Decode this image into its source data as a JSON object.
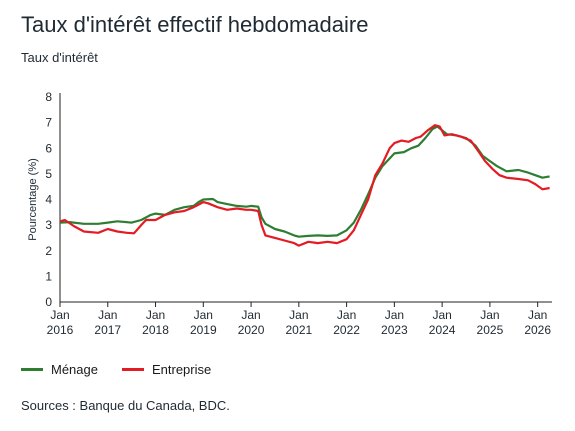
{
  "chart_data": {
    "type": "line",
    "title": "Taux d'intérêt effectif hebdomadaire",
    "subtitle": "Taux d'intérêt",
    "ylabel": "Pourcentage (%)",
    "xlabel": "",
    "ylim": [
      0,
      8
    ],
    "yticks": [
      "0",
      "1",
      "2",
      "3",
      "4",
      "5",
      "6",
      "7",
      "8"
    ],
    "xlim": [
      2016.0,
      2026.3
    ],
    "xticks": [
      {
        "x": 2016,
        "l1": "Jan",
        "l2": "2016"
      },
      {
        "x": 2017,
        "l1": "Jan",
        "l2": "2017"
      },
      {
        "x": 2018,
        "l1": "Jan",
        "l2": "2018"
      },
      {
        "x": 2019,
        "l1": "Jan",
        "l2": "2019"
      },
      {
        "x": 2020,
        "l1": "Jan",
        "l2": "2020"
      },
      {
        "x": 2021,
        "l1": "Jan",
        "l2": "2021"
      },
      {
        "x": 2022,
        "l1": "Jan",
        "l2": "2022"
      },
      {
        "x": 2023,
        "l1": "Jan",
        "l2": "2023"
      },
      {
        "x": 2024,
        "l1": "Jan",
        "l2": "2024"
      },
      {
        "x": 2025,
        "l1": "Jan",
        "l2": "2025"
      },
      {
        "x": 2026,
        "l1": "Jan",
        "l2": "2026"
      }
    ],
    "grid": false,
    "legend_position": "bottom-left",
    "series": [
      {
        "name": "Ménage",
        "color": "#2e7d32",
        "points": [
          [
            2016.0,
            3.1
          ],
          [
            2016.2,
            3.12
          ],
          [
            2016.5,
            3.05
          ],
          [
            2016.8,
            3.05
          ],
          [
            2017.0,
            3.1
          ],
          [
            2017.2,
            3.15
          ],
          [
            2017.5,
            3.1
          ],
          [
            2017.7,
            3.2
          ],
          [
            2017.9,
            3.4
          ],
          [
            2018.0,
            3.45
          ],
          [
            2018.2,
            3.4
          ],
          [
            2018.4,
            3.6
          ],
          [
            2018.6,
            3.7
          ],
          [
            2018.8,
            3.75
          ],
          [
            2018.9,
            3.9
          ],
          [
            2019.0,
            4.0
          ],
          [
            2019.2,
            4.02
          ],
          [
            2019.3,
            3.9
          ],
          [
            2019.5,
            3.82
          ],
          [
            2019.7,
            3.75
          ],
          [
            2019.9,
            3.72
          ],
          [
            2020.0,
            3.75
          ],
          [
            2020.15,
            3.72
          ],
          [
            2020.22,
            3.3
          ],
          [
            2020.3,
            3.05
          ],
          [
            2020.5,
            2.85
          ],
          [
            2020.7,
            2.75
          ],
          [
            2020.9,
            2.6
          ],
          [
            2021.0,
            2.55
          ],
          [
            2021.2,
            2.58
          ],
          [
            2021.4,
            2.6
          ],
          [
            2021.6,
            2.58
          ],
          [
            2021.8,
            2.6
          ],
          [
            2022.0,
            2.8
          ],
          [
            2022.15,
            3.1
          ],
          [
            2022.3,
            3.6
          ],
          [
            2022.45,
            4.2
          ],
          [
            2022.6,
            4.85
          ],
          [
            2022.75,
            5.3
          ],
          [
            2022.9,
            5.6
          ],
          [
            2023.0,
            5.8
          ],
          [
            2023.2,
            5.85
          ],
          [
            2023.35,
            6.0
          ],
          [
            2023.5,
            6.1
          ],
          [
            2023.65,
            6.4
          ],
          [
            2023.8,
            6.75
          ],
          [
            2023.9,
            6.85
          ],
          [
            2024.0,
            6.7
          ],
          [
            2024.1,
            6.55
          ],
          [
            2024.3,
            6.5
          ],
          [
            2024.5,
            6.4
          ],
          [
            2024.7,
            6.1
          ],
          [
            2024.85,
            5.7
          ],
          [
            2025.0,
            5.5
          ],
          [
            2025.15,
            5.3
          ],
          [
            2025.35,
            5.1
          ],
          [
            2025.6,
            5.15
          ],
          [
            2025.8,
            5.05
          ],
          [
            2025.95,
            4.95
          ],
          [
            2026.1,
            4.85
          ],
          [
            2026.25,
            4.9
          ]
        ]
      },
      {
        "name": "Entreprise",
        "color": "#e31b23",
        "points": [
          [
            2016.0,
            3.15
          ],
          [
            2016.1,
            3.2
          ],
          [
            2016.3,
            2.95
          ],
          [
            2016.5,
            2.75
          ],
          [
            2016.8,
            2.7
          ],
          [
            2017.0,
            2.85
          ],
          [
            2017.2,
            2.75
          ],
          [
            2017.4,
            2.7
          ],
          [
            2017.55,
            2.68
          ],
          [
            2017.7,
            3.0
          ],
          [
            2017.8,
            3.2
          ],
          [
            2018.0,
            3.2
          ],
          [
            2018.2,
            3.4
          ],
          [
            2018.4,
            3.5
          ],
          [
            2018.6,
            3.55
          ],
          [
            2018.8,
            3.7
          ],
          [
            2019.0,
            3.9
          ],
          [
            2019.1,
            3.85
          ],
          [
            2019.3,
            3.7
          ],
          [
            2019.5,
            3.6
          ],
          [
            2019.7,
            3.65
          ],
          [
            2019.9,
            3.6
          ],
          [
            2020.0,
            3.6
          ],
          [
            2020.15,
            3.55
          ],
          [
            2020.22,
            3.0
          ],
          [
            2020.3,
            2.6
          ],
          [
            2020.5,
            2.5
          ],
          [
            2020.7,
            2.4
          ],
          [
            2020.9,
            2.3
          ],
          [
            2021.0,
            2.2
          ],
          [
            2021.2,
            2.35
          ],
          [
            2021.4,
            2.3
          ],
          [
            2021.6,
            2.35
          ],
          [
            2021.8,
            2.3
          ],
          [
            2022.0,
            2.45
          ],
          [
            2022.15,
            2.8
          ],
          [
            2022.3,
            3.4
          ],
          [
            2022.45,
            4.0
          ],
          [
            2022.6,
            4.95
          ],
          [
            2022.75,
            5.4
          ],
          [
            2022.9,
            6.0
          ],
          [
            2023.0,
            6.2
          ],
          [
            2023.15,
            6.3
          ],
          [
            2023.3,
            6.25
          ],
          [
            2023.45,
            6.4
          ],
          [
            2023.55,
            6.45
          ],
          [
            2023.7,
            6.7
          ],
          [
            2023.85,
            6.9
          ],
          [
            2023.95,
            6.85
          ],
          [
            2024.05,
            6.5
          ],
          [
            2024.2,
            6.55
          ],
          [
            2024.4,
            6.45
          ],
          [
            2024.6,
            6.3
          ],
          [
            2024.75,
            5.9
          ],
          [
            2024.9,
            5.5
          ],
          [
            2025.05,
            5.2
          ],
          [
            2025.2,
            4.95
          ],
          [
            2025.35,
            4.85
          ],
          [
            2025.6,
            4.8
          ],
          [
            2025.8,
            4.75
          ],
          [
            2025.95,
            4.6
          ],
          [
            2026.1,
            4.4
          ],
          [
            2026.25,
            4.45
          ]
        ]
      }
    ]
  },
  "legend": {
    "items": [
      {
        "label": "Ménage",
        "color": "#2e7d32"
      },
      {
        "label": "Entreprise",
        "color": "#e31b23"
      }
    ]
  },
  "footer": {
    "source": "Sources : Banque du Canada, BDC."
  }
}
